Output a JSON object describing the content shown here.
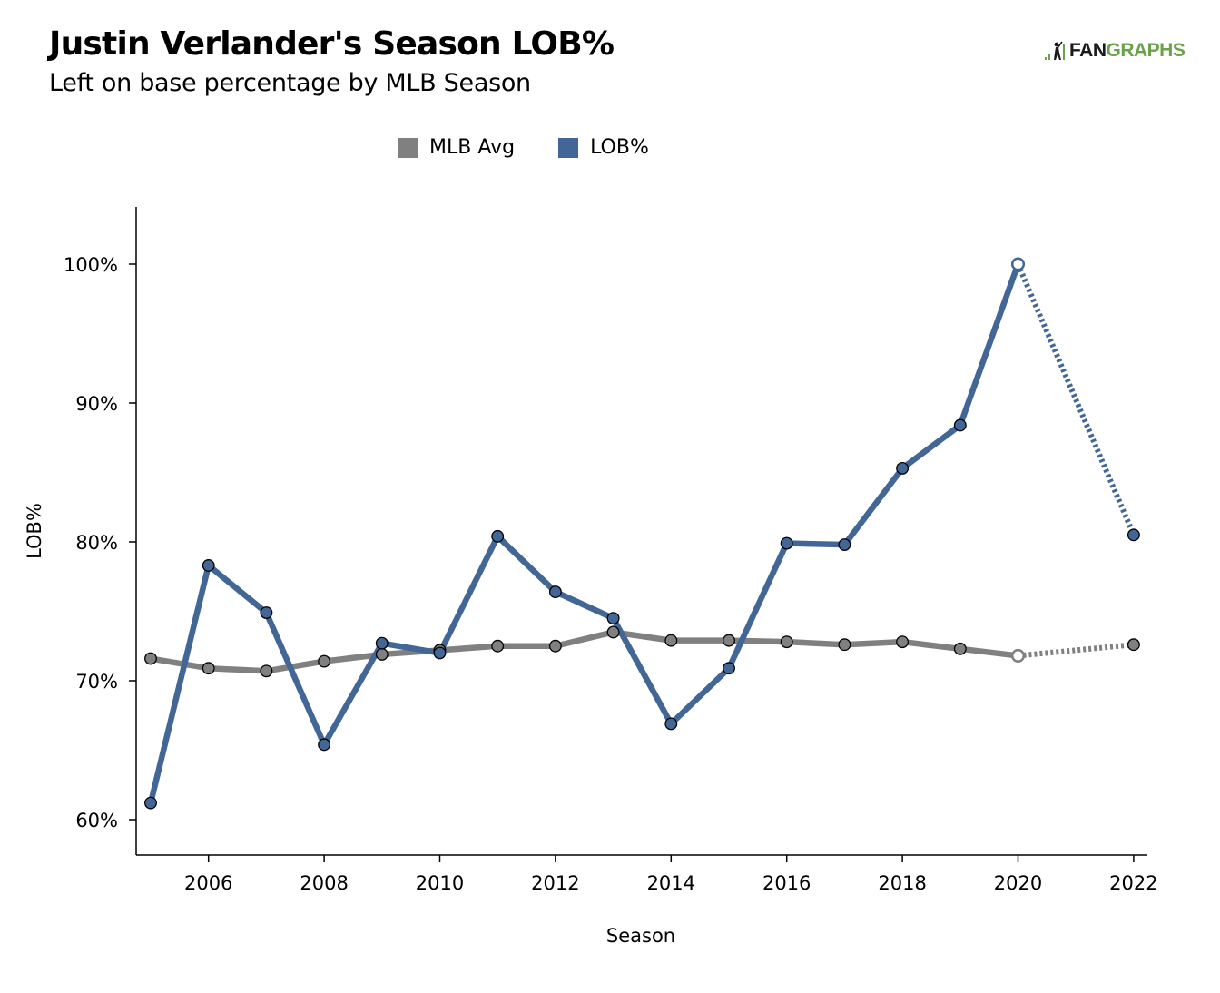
{
  "header": {
    "title": "Justin Verlander's Season LOB%",
    "subtitle": "Left on base percentage by MLB Season",
    "logo_fan": "FAN",
    "logo_graphs": "GRAPHS"
  },
  "colors": {
    "mlb_avg": "#808080",
    "lob": "#426796",
    "logo_green": "#6ba149"
  },
  "chart_data": {
    "type": "line",
    "xlabel": "Season",
    "ylabel": "LOB%",
    "xlim": [
      2005,
      2022
    ],
    "ylim": [
      58,
      104
    ],
    "x_ticks": [
      2006,
      2008,
      2010,
      2012,
      2014,
      2016,
      2018,
      2020,
      2022
    ],
    "y_ticks": [
      60,
      70,
      80,
      90,
      100
    ],
    "y_tick_labels": [
      "60%",
      "70%",
      "80%",
      "90%",
      "100%"
    ],
    "legend_position": "top-center",
    "grid": false,
    "series": [
      {
        "name": "MLB Avg",
        "color": "#808080",
        "points": [
          {
            "x": 2005,
            "y": 71.6
          },
          {
            "x": 2006,
            "y": 70.9
          },
          {
            "x": 2007,
            "y": 70.7
          },
          {
            "x": 2008,
            "y": 71.4
          },
          {
            "x": 2009,
            "y": 71.9
          },
          {
            "x": 2010,
            "y": 72.2
          },
          {
            "x": 2011,
            "y": 72.5
          },
          {
            "x": 2012,
            "y": 72.5
          },
          {
            "x": 2013,
            "y": 73.5
          },
          {
            "x": 2014,
            "y": 72.9
          },
          {
            "x": 2015,
            "y": 72.9
          },
          {
            "x": 2016,
            "y": 72.8
          },
          {
            "x": 2017,
            "y": 72.6
          },
          {
            "x": 2018,
            "y": 72.8
          },
          {
            "x": 2019,
            "y": 72.3
          },
          {
            "x": 2020,
            "y": 71.8
          },
          {
            "x": 2022,
            "y": 72.6
          }
        ]
      },
      {
        "name": "LOB%",
        "color": "#426796",
        "points": [
          {
            "x": 2005,
            "y": 61.2
          },
          {
            "x": 2006,
            "y": 78.3
          },
          {
            "x": 2007,
            "y": 74.9
          },
          {
            "x": 2008,
            "y": 65.4
          },
          {
            "x": 2009,
            "y": 72.7
          },
          {
            "x": 2010,
            "y": 72.0
          },
          {
            "x": 2011,
            "y": 80.4
          },
          {
            "x": 2012,
            "y": 76.4
          },
          {
            "x": 2013,
            "y": 74.5
          },
          {
            "x": 2014,
            "y": 66.9
          },
          {
            "x": 2015,
            "y": 70.9
          },
          {
            "x": 2016,
            "y": 79.9
          },
          {
            "x": 2017,
            "y": 79.8
          },
          {
            "x": 2018,
            "y": 85.3
          },
          {
            "x": 2019,
            "y": 88.4
          },
          {
            "x": 2020,
            "y": 100.0
          },
          {
            "x": 2022,
            "y": 80.5
          }
        ]
      }
    ]
  }
}
